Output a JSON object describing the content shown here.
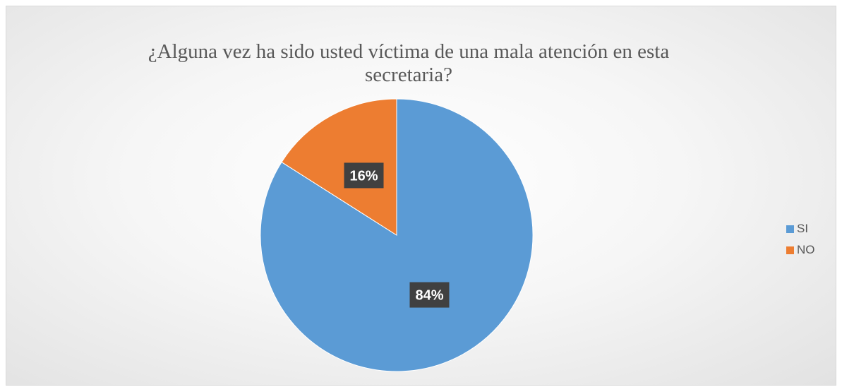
{
  "chart_data": {
    "type": "pie",
    "title_lines": [
      "¿Alguna vez ha sido usted víctima de una mala atención en esta",
      "secretaria?"
    ],
    "categories": [
      "SI",
      "NO"
    ],
    "values": [
      84,
      16
    ],
    "data_labels": [
      "84%",
      "16%"
    ],
    "colors": [
      "#5B9BD5",
      "#ED7D31"
    ],
    "legend_position": "right",
    "start_angle_deg": 0,
    "direction": "clockwise"
  }
}
